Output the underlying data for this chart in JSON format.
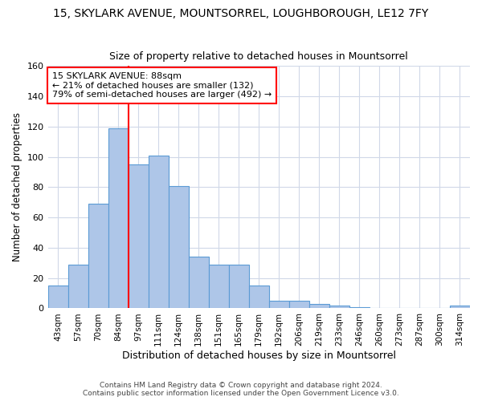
{
  "title": "15, SKYLARK AVENUE, MOUNTSORREL, LOUGHBOROUGH, LE12 7FY",
  "subtitle": "Size of property relative to detached houses in Mountsorrel",
  "xlabel": "Distribution of detached houses by size in Mountsorrel",
  "ylabel": "Number of detached properties",
  "bar_color": "#aec6e8",
  "bar_edge_color": "#5b9bd5",
  "bin_labels": [
    "43sqm",
    "57sqm",
    "70sqm",
    "84sqm",
    "97sqm",
    "111sqm",
    "124sqm",
    "138sqm",
    "151sqm",
    "165sqm",
    "179sqm",
    "192sqm",
    "206sqm",
    "219sqm",
    "233sqm",
    "246sqm",
    "260sqm",
    "273sqm",
    "287sqm",
    "300sqm",
    "314sqm"
  ],
  "bar_values": [
    15,
    29,
    69,
    119,
    95,
    101,
    81,
    34,
    29,
    29,
    15,
    5,
    5,
    3,
    2,
    1,
    0,
    0,
    0,
    0,
    2
  ],
  "ylim": [
    0,
    160
  ],
  "yticks": [
    0,
    20,
    40,
    60,
    80,
    100,
    120,
    140,
    160
  ],
  "vline_x": 3.5,
  "annotation_line1": "15 SKYLARK AVENUE: 88sqm",
  "annotation_line2": "← 21% of detached houses are smaller (132)",
  "annotation_line3": "79% of semi-detached houses are larger (492) →",
  "annotation_box_color": "white",
  "annotation_box_edge_color": "red",
  "vline_color": "red",
  "footer_line1": "Contains HM Land Registry data © Crown copyright and database right 2024.",
  "footer_line2": "Contains public sector information licensed under the Open Government Licence v3.0.",
  "background_color": "#ffffff",
  "grid_color": "#d0d8e8"
}
